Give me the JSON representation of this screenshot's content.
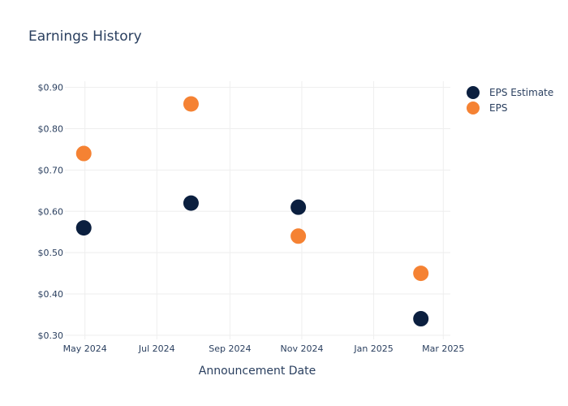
{
  "chart_data": {
    "type": "scatter",
    "title": "Earnings History",
    "xlabel": "Announcement Date",
    "ylabel": "",
    "x_ticks": [
      {
        "date": "2024-05-01",
        "label": "May 2024"
      },
      {
        "date": "2024-07-01",
        "label": "Jul 2024"
      },
      {
        "date": "2024-09-01",
        "label": "Sep 2024"
      },
      {
        "date": "2024-11-01",
        "label": "Nov 2024"
      },
      {
        "date": "2025-01-01",
        "label": "Jan 2025"
      },
      {
        "date": "2025-03-01",
        "label": "Mar 2025"
      }
    ],
    "y_ticks": [
      {
        "value": 0.3,
        "label": "$0.30"
      },
      {
        "value": 0.4,
        "label": "$0.40"
      },
      {
        "value": 0.5,
        "label": "$0.50"
      },
      {
        "value": 0.6,
        "label": "$0.60"
      },
      {
        "value": 0.7,
        "label": "$0.70"
      },
      {
        "value": 0.8,
        "label": "$0.80"
      },
      {
        "value": 0.9,
        "label": "$0.90"
      }
    ],
    "xlim": [
      "2024-04-14",
      "2025-03-07"
    ],
    "ylim": [
      0.29,
      0.915
    ],
    "grid": true,
    "legend": "top-right",
    "series": [
      {
        "name": "EPS Estimate",
        "color": "#0b1f3f",
        "points": [
          {
            "x": "2024-04-30",
            "y": 0.56
          },
          {
            "x": "2024-07-30",
            "y": 0.62
          },
          {
            "x": "2024-10-29",
            "y": 0.61
          },
          {
            "x": "2025-02-10",
            "y": 0.34
          }
        ]
      },
      {
        "name": "EPS",
        "color": "#f58233",
        "points": [
          {
            "x": "2024-04-30",
            "y": 0.74
          },
          {
            "x": "2024-07-30",
            "y": 0.86
          },
          {
            "x": "2024-10-29",
            "y": 0.54
          },
          {
            "x": "2025-02-10",
            "y": 0.45
          }
        ]
      }
    ]
  }
}
